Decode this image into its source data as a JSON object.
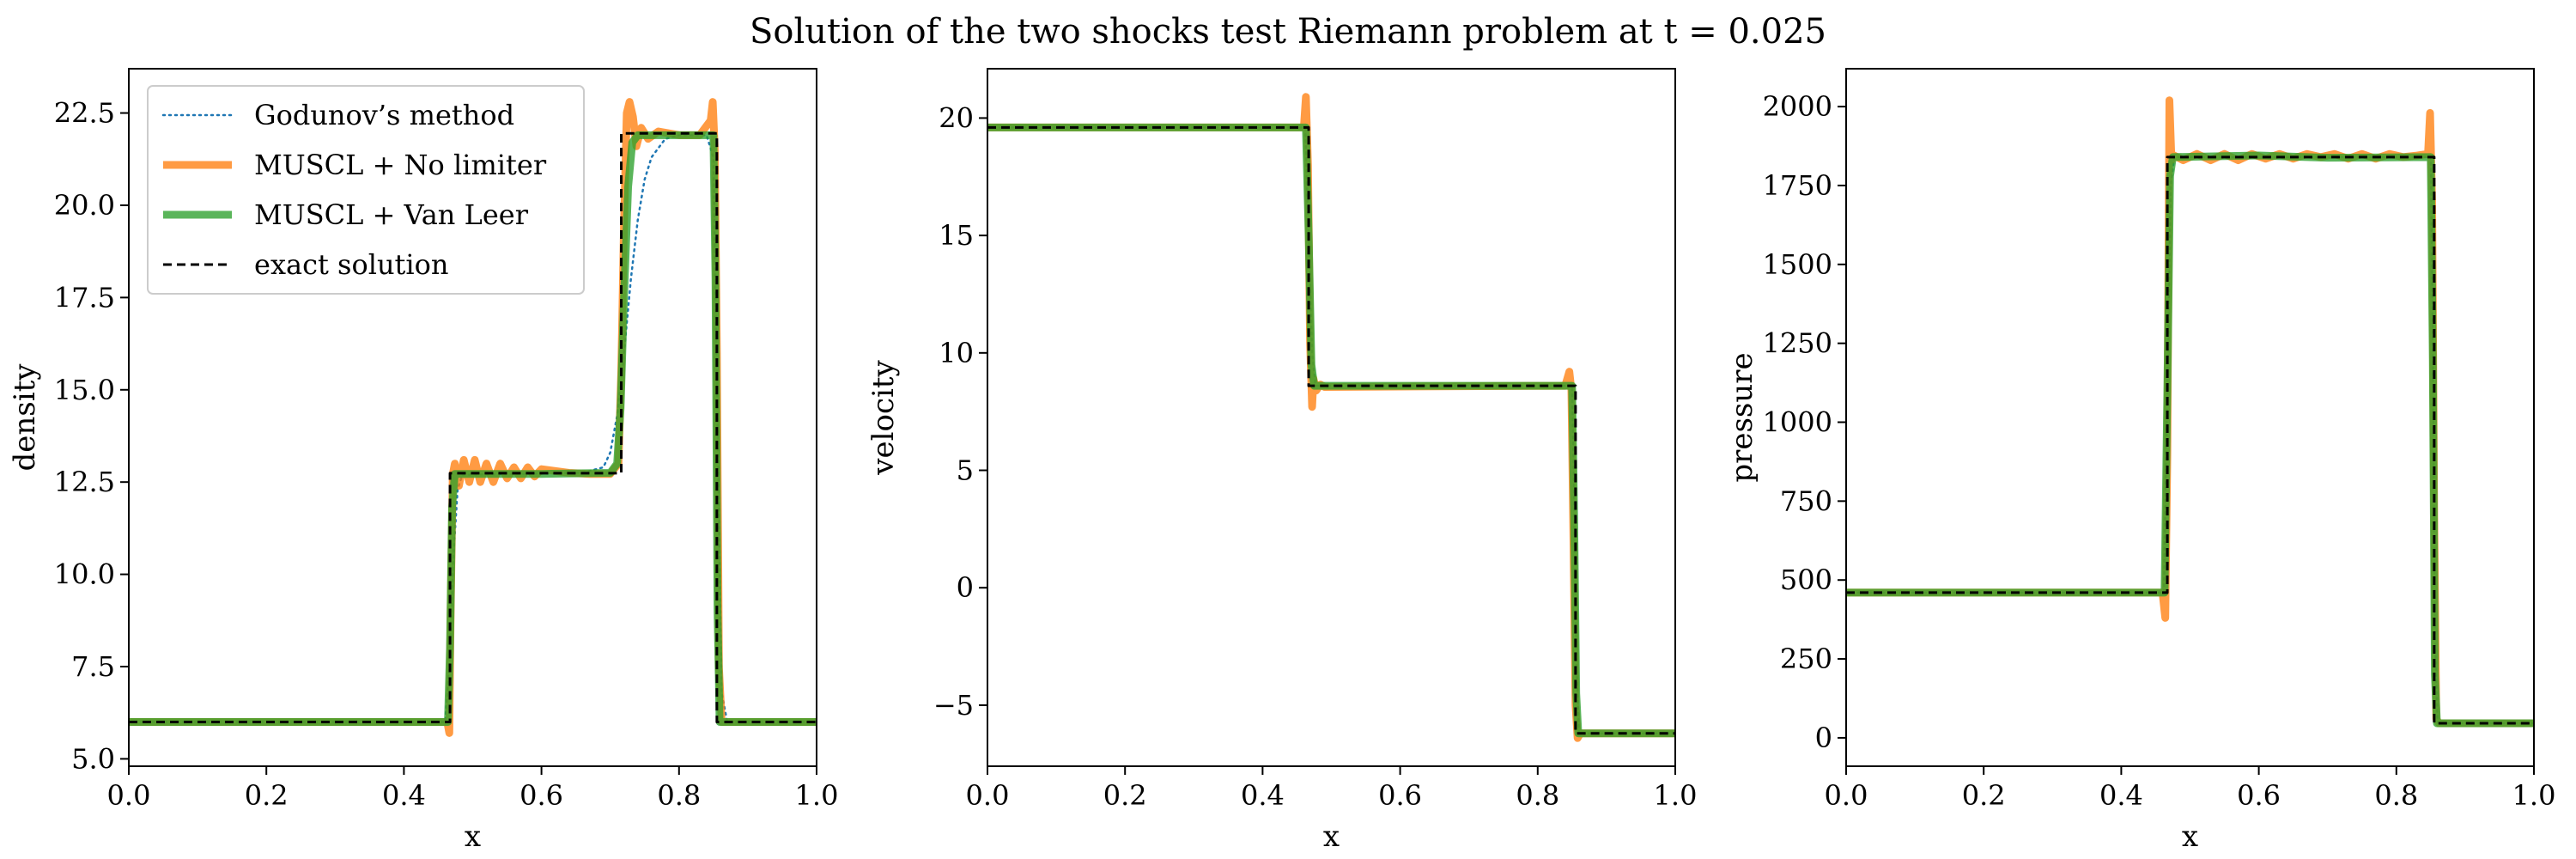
{
  "title": "Solution of the two shocks test Riemann problem at t = 0.025",
  "colors": {
    "godunov": "#1f77b4",
    "muscl_none": "#ff7f0e",
    "muscl_vanleer": "#2ca02c",
    "exact": "#000000"
  },
  "legend": {
    "placement": "upper-left of first panel",
    "items": [
      "Godunov’s method",
      "MUSCL + No limiter",
      "MUSCL + Van Leer",
      "exact solution"
    ]
  },
  "chart_data": [
    {
      "type": "line",
      "xlabel": "x",
      "ylabel": "density",
      "xlim": [
        0.0,
        1.0
      ],
      "ylim": [
        4.8,
        23.7
      ],
      "xticks": [
        "0.0",
        "0.2",
        "0.4",
        "0.6",
        "0.8",
        "1.0"
      ],
      "yticks": [
        "5.0",
        "7.5",
        "10.0",
        "12.5",
        "15.0",
        "17.5",
        "20.0",
        "22.5"
      ],
      "grid": false,
      "series": [
        {
          "name": "Godunov’s method",
          "style": "dotted",
          "x": [
            0.0,
            0.46,
            0.466,
            0.472,
            0.478,
            0.485,
            0.6,
            0.66,
            0.69,
            0.7,
            0.71,
            0.72,
            0.73,
            0.74,
            0.75,
            0.76,
            0.78,
            0.8,
            0.84,
            0.85,
            0.856,
            0.862,
            0.87,
            1.0
          ],
          "y": [
            6.0,
            6.0,
            7.5,
            10.5,
            12.3,
            12.7,
            12.73,
            12.75,
            12.9,
            13.3,
            14.3,
            16.0,
            18.0,
            19.6,
            20.7,
            21.3,
            21.8,
            21.9,
            21.9,
            21.3,
            14.0,
            6.8,
            6.0,
            6.0
          ]
        },
        {
          "name": "MUSCL + No limiter",
          "style": "solid",
          "x": [
            0.0,
            0.463,
            0.466,
            0.468,
            0.471,
            0.474,
            0.48,
            0.487,
            0.495,
            0.503,
            0.511,
            0.52,
            0.53,
            0.54,
            0.55,
            0.56,
            0.57,
            0.58,
            0.59,
            0.6,
            0.62,
            0.64,
            0.67,
            0.7,
            0.712,
            0.716,
            0.72,
            0.724,
            0.728,
            0.733,
            0.738,
            0.745,
            0.755,
            0.77,
            0.8,
            0.83,
            0.846,
            0.849,
            0.852,
            0.855,
            0.858,
            0.862,
            1.0
          ],
          "y": [
            6.0,
            6.0,
            5.7,
            9.0,
            12.7,
            13.0,
            12.4,
            13.1,
            12.5,
            13.1,
            12.5,
            13.0,
            12.5,
            13.0,
            12.6,
            12.9,
            12.6,
            12.9,
            12.65,
            12.85,
            12.8,
            12.75,
            12.72,
            12.72,
            13.0,
            15.5,
            19.5,
            22.5,
            22.8,
            22.4,
            21.6,
            22.1,
            21.8,
            22.0,
            21.9,
            21.9,
            22.3,
            22.8,
            21.5,
            16.0,
            7.5,
            6.0,
            6.0
          ]
        },
        {
          "name": "MUSCL + Van Leer",
          "style": "solid",
          "x": [
            0.0,
            0.464,
            0.467,
            0.47,
            0.474,
            0.6,
            0.7,
            0.71,
            0.715,
            0.72,
            0.726,
            0.732,
            0.74,
            0.8,
            0.85,
            0.853,
            0.856,
            0.859,
            1.0
          ],
          "y": [
            6.0,
            6.0,
            8.0,
            11.8,
            12.72,
            12.72,
            12.75,
            13.0,
            14.5,
            17.5,
            20.5,
            21.7,
            21.9,
            21.9,
            21.9,
            18.0,
            9.0,
            6.0,
            6.0
          ]
        },
        {
          "name": "exact solution",
          "style": "dashed",
          "x": [
            0.0,
            0.467,
            0.467,
            0.716,
            0.716,
            0.855,
            0.855,
            1.0
          ],
          "y": [
            6.0,
            6.0,
            12.74,
            12.74,
            21.95,
            21.95,
            6.0,
            6.0
          ]
        }
      ]
    },
    {
      "type": "line",
      "xlabel": "x",
      "ylabel": "velocity",
      "xlim": [
        0.0,
        1.0
      ],
      "ylim": [
        -7.6,
        22.1
      ],
      "xticks": [
        "0.0",
        "0.2",
        "0.4",
        "0.6",
        "0.8",
        "1.0"
      ],
      "yticks": [
        "−5",
        "0",
        "5",
        "10",
        "15",
        "20"
      ],
      "grid": false,
      "series": [
        {
          "name": "Godunov’s method",
          "style": "dotted",
          "x": [
            0.0,
            0.462,
            0.467,
            0.472,
            0.477,
            0.85,
            0.853,
            0.856,
            0.86,
            1.0
          ],
          "y": [
            19.6,
            19.6,
            15.0,
            10.0,
            8.6,
            8.6,
            4.0,
            -3.0,
            -6.2,
            -6.2
          ]
        },
        {
          "name": "MUSCL + No limiter",
          "style": "solid",
          "x": [
            0.0,
            0.46,
            0.463,
            0.466,
            0.469,
            0.472,
            0.474,
            0.478,
            0.484,
            0.49,
            0.84,
            0.846,
            0.849,
            0.852,
            0.855,
            0.858,
            0.862,
            1.0
          ],
          "y": [
            19.6,
            19.6,
            20.9,
            18.0,
            10.5,
            7.7,
            8.9,
            8.4,
            8.65,
            8.55,
            8.6,
            9.2,
            8.4,
            2.0,
            -5.0,
            -6.4,
            -6.2,
            -6.2
          ]
        },
        {
          "name": "MUSCL + Van Leer",
          "style": "solid",
          "x": [
            0.0,
            0.463,
            0.467,
            0.471,
            0.475,
            0.85,
            0.853,
            0.856,
            0.859,
            1.0
          ],
          "y": [
            19.6,
            19.6,
            15.0,
            9.5,
            8.6,
            8.6,
            3.0,
            -4.5,
            -6.2,
            -6.2
          ]
        },
        {
          "name": "exact solution",
          "style": "dashed",
          "x": [
            0.0,
            0.467,
            0.467,
            0.855,
            0.855,
            1.0
          ],
          "y": [
            19.6,
            19.6,
            8.6,
            8.6,
            -6.2,
            -6.2
          ]
        }
      ]
    },
    {
      "type": "line",
      "xlabel": "x",
      "ylabel": "pressure",
      "xlim": [
        0.0,
        1.0
      ],
      "ylim": [
        -90,
        2120
      ],
      "xticks": [
        "0.0",
        "0.2",
        "0.4",
        "0.6",
        "0.8",
        "1.0"
      ],
      "yticks": [
        "0",
        "250",
        "500",
        "750",
        "1000",
        "1250",
        "1500",
        "1750",
        "2000"
      ],
      "grid": false,
      "series": [
        {
          "name": "Godunov’s method",
          "style": "dotted",
          "x": [
            0.0,
            0.462,
            0.467,
            0.472,
            0.477,
            0.85,
            0.853,
            0.856,
            0.86,
            1.0
          ],
          "y": [
            460,
            460,
            1100,
            1750,
            1840,
            1840,
            1300,
            300,
            46,
            46
          ]
        },
        {
          "name": "MUSCL + No limiter",
          "style": "solid",
          "x": [
            0.0,
            0.46,
            0.464,
            0.467,
            0.47,
            0.473,
            0.477,
            0.49,
            0.51,
            0.53,
            0.55,
            0.57,
            0.59,
            0.61,
            0.63,
            0.65,
            0.67,
            0.69,
            0.71,
            0.73,
            0.75,
            0.77,
            0.79,
            0.81,
            0.83,
            0.846,
            0.849,
            0.852,
            0.855,
            0.858,
            0.862,
            1.0
          ],
          "y": [
            460,
            460,
            380,
            900,
            2020,
            1830,
            1845,
            1830,
            1850,
            1830,
            1850,
            1830,
            1850,
            1835,
            1850,
            1835,
            1850,
            1840,
            1850,
            1835,
            1850,
            1835,
            1850,
            1840,
            1845,
            1850,
            1980,
            1700,
            700,
            60,
            46,
            46
          ]
        },
        {
          "name": "MUSCL + Van Leer",
          "style": "solid",
          "x": [
            0.0,
            0.463,
            0.467,
            0.471,
            0.475,
            0.6,
            0.7,
            0.85,
            0.853,
            0.856,
            0.859,
            1.0
          ],
          "y": [
            460,
            460,
            1100,
            1780,
            1840,
            1845,
            1838,
            1840,
            1200,
            200,
            46,
            46
          ]
        },
        {
          "name": "exact solution",
          "style": "dashed",
          "x": [
            0.0,
            0.467,
            0.467,
            0.855,
            0.855,
            1.0
          ],
          "y": [
            460,
            460,
            1840,
            1840,
            46,
            46
          ]
        }
      ]
    }
  ]
}
